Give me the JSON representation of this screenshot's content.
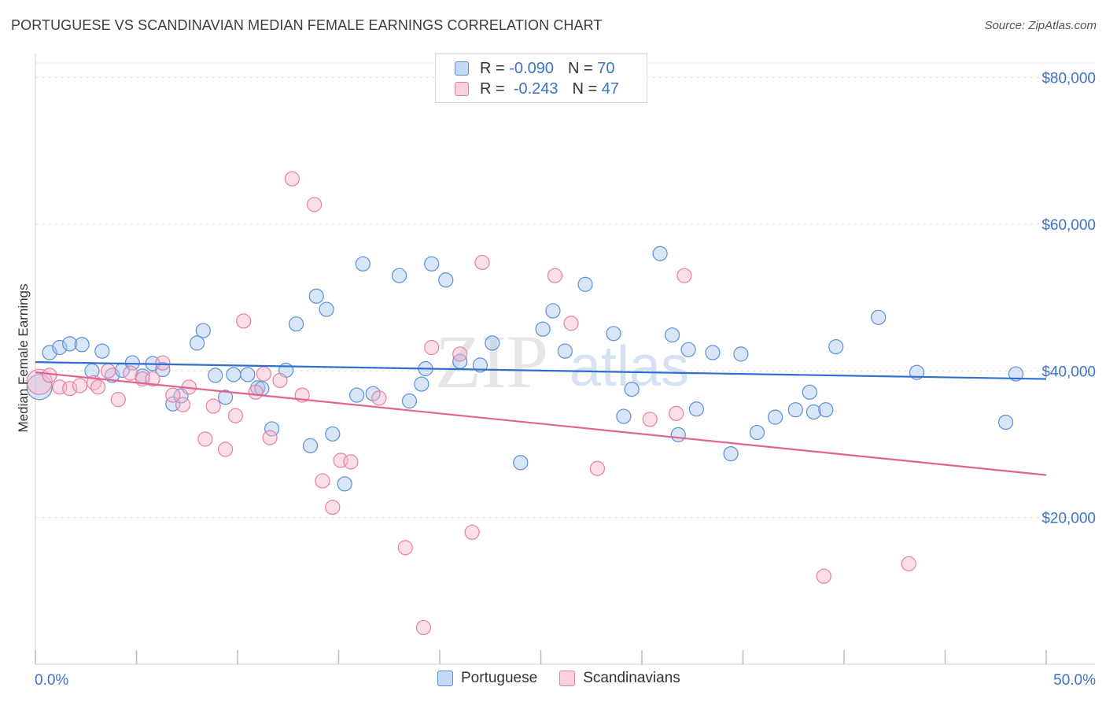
{
  "title": "PORTUGUESE VS SCANDINAVIAN MEDIAN FEMALE EARNINGS CORRELATION CHART",
  "source": "Source: ZipAtlas.com",
  "watermark": {
    "zip": "ZIP",
    "atlas": "atlas"
  },
  "legend": {
    "rows": [
      {
        "r_label": "R =",
        "r_value": "-0.090",
        "n_label": "N =",
        "n_value": "70",
        "color": "#a9c8ef",
        "stroke": "#5b8fd6"
      },
      {
        "r_label": "R =",
        "r_value": "-0.243",
        "n_label": "N =",
        "n_value": "47",
        "color": "#f7b9cd",
        "stroke": "#e67fa0"
      }
    ]
  },
  "bottom_legend": [
    "Portuguese",
    "Scandinavians"
  ],
  "chart_data": {
    "type": "scatter",
    "title": "PORTUGUESE VS SCANDINAVIAN MEDIAN FEMALE EARNINGS CORRELATION CHART",
    "xlabel": "",
    "ylabel": "Median Female Earnings",
    "xlim": [
      0,
      50
    ],
    "ylim": [
      0,
      82000
    ],
    "x_tick_labels": [
      "0.0%",
      "50.0%"
    ],
    "y_ticks": [
      20000,
      40000,
      60000,
      80000
    ],
    "y_tick_labels": [
      "$20,000",
      "$40,000",
      "$60,000",
      "$80,000"
    ],
    "grid": true,
    "legend_position": "top-center",
    "series": [
      {
        "name": "Portuguese",
        "color": "#5b8fd6",
        "fill": "#a9c8ef",
        "trend": {
          "x": [
            0,
            50
          ],
          "y": [
            41200,
            38900
          ],
          "color": "#2f6fd0"
        },
        "points": [
          [
            0.2,
            37800
          ],
          [
            0.7,
            42500
          ],
          [
            1.2,
            43200
          ],
          [
            1.7,
            43700
          ],
          [
            2.3,
            43600
          ],
          [
            2.8,
            40000
          ],
          [
            3.3,
            42700
          ],
          [
            3.8,
            39400
          ],
          [
            4.3,
            40100
          ],
          [
            4.8,
            41100
          ],
          [
            5.3,
            39300
          ],
          [
            5.8,
            41000
          ],
          [
            6.3,
            40200
          ],
          [
            6.8,
            35500
          ],
          [
            7.2,
            36600
          ],
          [
            8.0,
            43800
          ],
          [
            8.3,
            45500
          ],
          [
            8.9,
            39400
          ],
          [
            9.4,
            36400
          ],
          [
            9.8,
            39500
          ],
          [
            10.5,
            39500
          ],
          [
            11.0,
            37700
          ],
          [
            11.2,
            37600
          ],
          [
            11.7,
            32100
          ],
          [
            12.4,
            40100
          ],
          [
            12.9,
            46400
          ],
          [
            13.6,
            29800
          ],
          [
            13.9,
            50200
          ],
          [
            14.4,
            48400
          ],
          [
            14.7,
            31400
          ],
          [
            15.3,
            24600
          ],
          [
            15.9,
            36700
          ],
          [
            16.2,
            54600
          ],
          [
            16.7,
            36900
          ],
          [
            18.0,
            53000
          ],
          [
            18.5,
            35900
          ],
          [
            19.1,
            38200
          ],
          [
            19.3,
            40300
          ],
          [
            19.6,
            54600
          ],
          [
            20.3,
            52400
          ],
          [
            21.0,
            41300
          ],
          [
            22.0,
            40800
          ],
          [
            22.6,
            43800
          ],
          [
            24.0,
            27500
          ],
          [
            25.1,
            45700
          ],
          [
            25.6,
            48200
          ],
          [
            26.2,
            42700
          ],
          [
            27.2,
            51800
          ],
          [
            28.6,
            45100
          ],
          [
            29.1,
            33800
          ],
          [
            29.5,
            37500
          ],
          [
            30.9,
            56000
          ],
          [
            31.5,
            44900
          ],
          [
            31.8,
            31300
          ],
          [
            32.3,
            42900
          ],
          [
            32.7,
            34800
          ],
          [
            33.5,
            42500
          ],
          [
            34.4,
            28700
          ],
          [
            34.9,
            42300
          ],
          [
            35.7,
            31600
          ],
          [
            36.6,
            33700
          ],
          [
            37.6,
            34700
          ],
          [
            38.3,
            37100
          ],
          [
            38.5,
            34400
          ],
          [
            39.1,
            34700
          ],
          [
            39.6,
            43300
          ],
          [
            41.7,
            47300
          ],
          [
            43.6,
            39800
          ],
          [
            48.0,
            33000
          ],
          [
            48.5,
            39600
          ]
        ]
      },
      {
        "name": "Scandinavians",
        "color": "#e67fa0",
        "fill": "#f7b9cd",
        "trend": {
          "x": [
            0,
            50
          ],
          "y": [
            39800,
            25800
          ],
          "color": "#e0648c"
        },
        "points": [
          [
            0.2,
            38500
          ],
          [
            0.7,
            39400
          ],
          [
            1.2,
            37800
          ],
          [
            1.7,
            37600
          ],
          [
            2.2,
            38000
          ],
          [
            2.9,
            38400
          ],
          [
            3.1,
            37800
          ],
          [
            3.6,
            40000
          ],
          [
            4.1,
            36100
          ],
          [
            4.7,
            39700
          ],
          [
            5.3,
            38900
          ],
          [
            5.8,
            38900
          ],
          [
            6.3,
            41100
          ],
          [
            6.8,
            36700
          ],
          [
            7.3,
            35400
          ],
          [
            7.6,
            37800
          ],
          [
            8.4,
            30700
          ],
          [
            8.8,
            35200
          ],
          [
            9.4,
            29300
          ],
          [
            9.9,
            33900
          ],
          [
            10.3,
            46800
          ],
          [
            10.9,
            37100
          ],
          [
            11.3,
            39600
          ],
          [
            11.6,
            30900
          ],
          [
            12.1,
            38700
          ],
          [
            12.7,
            66200
          ],
          [
            13.2,
            36700
          ],
          [
            13.8,
            62700
          ],
          [
            14.2,
            25000
          ],
          [
            14.7,
            21400
          ],
          [
            15.1,
            27800
          ],
          [
            15.6,
            27600
          ],
          [
            17.0,
            36300
          ],
          [
            18.3,
            15900
          ],
          [
            19.2,
            5000
          ],
          [
            19.6,
            43200
          ],
          [
            21.0,
            42300
          ],
          [
            21.6,
            18000
          ],
          [
            22.1,
            54800
          ],
          [
            25.7,
            53000
          ],
          [
            26.5,
            46500
          ],
          [
            27.8,
            26700
          ],
          [
            30.4,
            33400
          ],
          [
            31.7,
            34200
          ],
          [
            32.1,
            53000
          ],
          [
            39.0,
            12000
          ],
          [
            43.2,
            13700
          ]
        ]
      }
    ]
  }
}
